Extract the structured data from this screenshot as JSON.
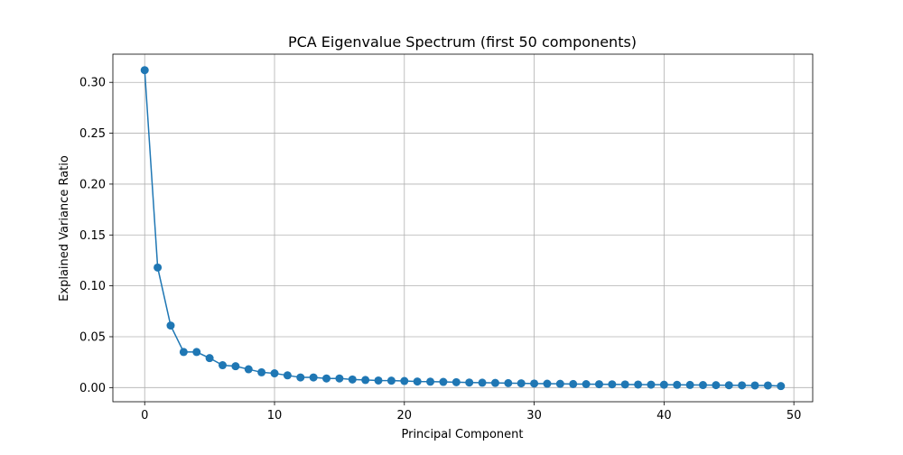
{
  "chart_data": {
    "type": "line",
    "title": "PCA Eigenvalue Spectrum (first 50 components)",
    "xlabel": "Principal Component",
    "ylabel": "Explained Variance Ratio",
    "xlim": [
      -2.45,
      51.45
    ],
    "ylim": [
      -0.0139,
      0.3277
    ],
    "xticks": [
      0,
      10,
      20,
      30,
      40,
      50
    ],
    "yticks": [
      0.0,
      0.05,
      0.1,
      0.15,
      0.2,
      0.25,
      0.3
    ],
    "ytick_labels": [
      "0.00",
      "0.05",
      "0.10",
      "0.15",
      "0.20",
      "0.25",
      "0.30"
    ],
    "xtick_labels": [
      "0",
      "10",
      "20",
      "30",
      "40",
      "50"
    ],
    "grid": true,
    "legend": null,
    "series": [
      {
        "color": "#1f77b4",
        "marker": "circle",
        "x": [
          0,
          1,
          2,
          3,
          4,
          5,
          6,
          7,
          8,
          9,
          10,
          11,
          12,
          13,
          14,
          15,
          16,
          17,
          18,
          19,
          20,
          21,
          22,
          23,
          24,
          25,
          26,
          27,
          28,
          29,
          30,
          31,
          32,
          33,
          34,
          35,
          36,
          37,
          38,
          39,
          40,
          41,
          42,
          43,
          44,
          45,
          46,
          47,
          48,
          49
        ],
        "y": [
          0.312,
          0.118,
          0.061,
          0.035,
          0.035,
          0.029,
          0.022,
          0.021,
          0.018,
          0.015,
          0.014,
          0.012,
          0.01,
          0.01,
          0.009,
          0.009,
          0.008,
          0.0075,
          0.007,
          0.0068,
          0.0065,
          0.006,
          0.0058,
          0.0056,
          0.0053,
          0.005,
          0.0048,
          0.0046,
          0.0044,
          0.0042,
          0.004,
          0.0038,
          0.0037,
          0.0035,
          0.0034,
          0.0033,
          0.0032,
          0.0031,
          0.003,
          0.0029,
          0.0028,
          0.0027,
          0.0026,
          0.0025,
          0.0024,
          0.0023,
          0.0022,
          0.0021,
          0.0021,
          0.0015
        ]
      }
    ]
  }
}
